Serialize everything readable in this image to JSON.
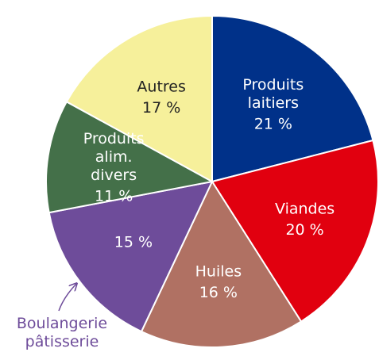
{
  "chart_data": {
    "type": "pie",
    "categories": [
      "Produits laitiers",
      "Viandes",
      "Huiles",
      "Boulangerie pâtisserie",
      "Produits alim. divers",
      "Autres"
    ],
    "values": [
      21,
      20,
      16,
      15,
      11,
      17
    ],
    "value_labels": [
      "21 %",
      "20 %",
      "16 %",
      "15 %",
      "11 %",
      "17 %"
    ],
    "colors": [
      "#003189",
      "#e1000f",
      "#b07163",
      "#6e4c9a",
      "#447049",
      "#f6f09b"
    ]
  }
}
